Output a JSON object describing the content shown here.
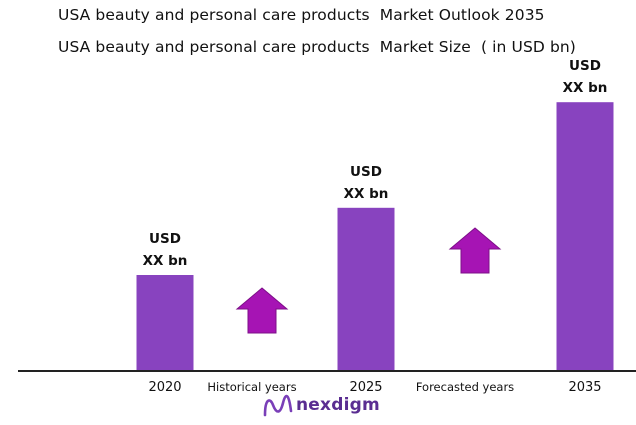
{
  "title": "USA beauty and personal care products  Market Outlook 2035",
  "subtitle": "USA beauty and personal care products  Market Size  ( in USD bn)",
  "chart_data": {
    "type": "bar",
    "categories": [
      "2020",
      "2025",
      "2035"
    ],
    "values": [
      1,
      1.7,
      2.8
    ],
    "value_labels": [
      [
        "USD",
        "XX bn"
      ],
      [
        "USD",
        "XX bn"
      ],
      [
        "USD",
        "XX bn"
      ]
    ],
    "annotations": [
      "Historical years",
      "Forecasted years"
    ],
    "colors": {
      "bar": "#8843bf",
      "arrow": "#a614b4",
      "axis": "#222222"
    },
    "grid": false,
    "y_axis_shown": false
  },
  "brand": {
    "name": "nexdigm",
    "color": "#5a2d91",
    "icon": "nexdigm-logo-icon"
  }
}
